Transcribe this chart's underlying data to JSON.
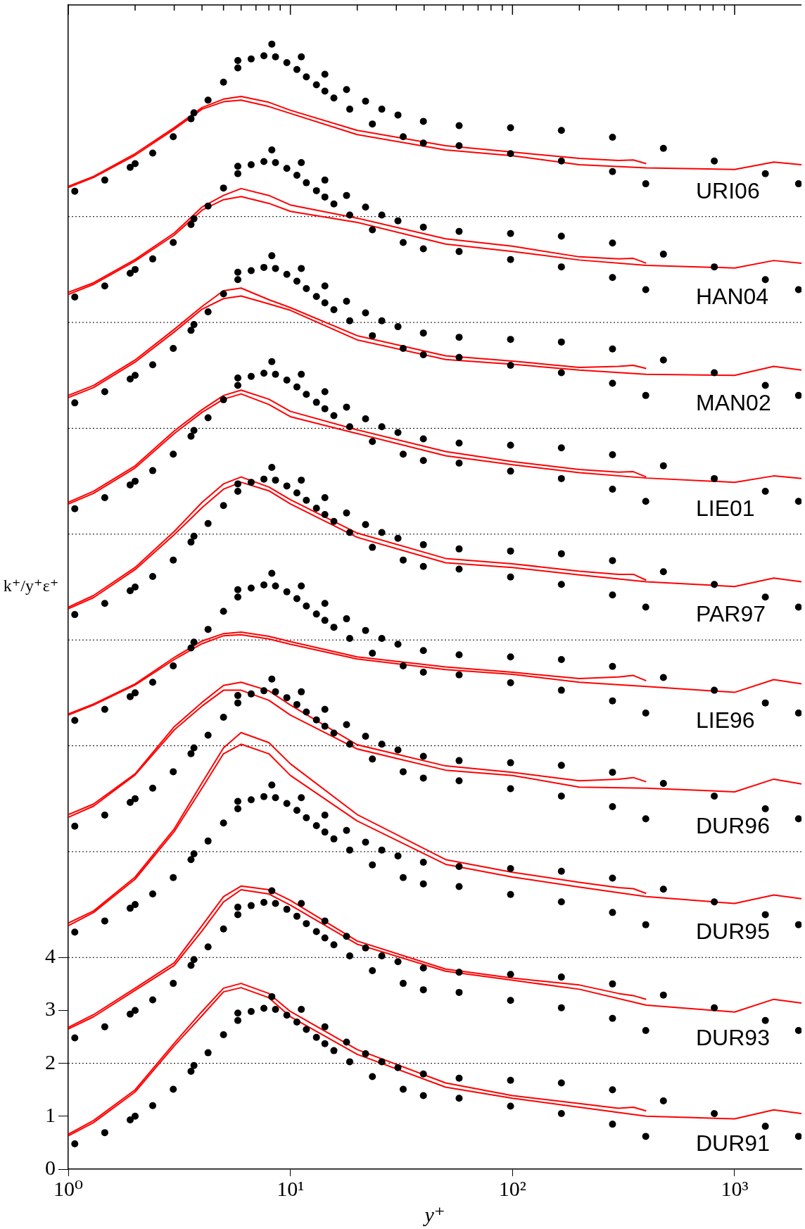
{
  "chart_data": {
    "type": "line",
    "xlabel": "y⁺",
    "ylabel": "k⁺/y⁺ε⁺",
    "log": "x",
    "grid": false,
    "legend": false,
    "xlim": [
      1,
      2000
    ],
    "ylim": [
      0,
      22
    ],
    "xticks": [
      {
        "value": 1,
        "label": "10⁰"
      },
      {
        "value": 2,
        "label": null
      },
      {
        "value": 3,
        "label": null
      },
      {
        "value": 4,
        "label": null
      },
      {
        "value": 5,
        "label": null
      },
      {
        "value": 6,
        "label": null
      },
      {
        "value": 7,
        "label": null
      },
      {
        "value": 8,
        "label": null
      },
      {
        "value": 9,
        "label": null
      },
      {
        "value": 10,
        "label": "10¹"
      },
      {
        "value": 20,
        "label": null
      },
      {
        "value": 30,
        "label": null
      },
      {
        "value": 40,
        "label": null
      },
      {
        "value": 50,
        "label": null
      },
      {
        "value": 60,
        "label": null
      },
      {
        "value": 70,
        "label": null
      },
      {
        "value": 80,
        "label": null
      },
      {
        "value": 90,
        "label": null
      },
      {
        "value": 100,
        "label": "10²"
      },
      {
        "value": 200,
        "label": null
      },
      {
        "value": 300,
        "label": null
      },
      {
        "value": 400,
        "label": null
      },
      {
        "value": 500,
        "label": null
      },
      {
        "value": 600,
        "label": null
      },
      {
        "value": 700,
        "label": null
      },
      {
        "value": 800,
        "label": null
      },
      {
        "value": 900,
        "label": null
      },
      {
        "value": 1000,
        "label": "10³"
      }
    ],
    "yticks": [
      0,
      1,
      2,
      3,
      4
    ],
    "ref_lines": [
      {
        "axis": "y",
        "value": 2,
        "color": "#000000",
        "line_style": "dotted"
      },
      {
        "axis": "y",
        "value": 4,
        "color": "#000000",
        "line_style": "dotted"
      },
      {
        "axis": "y",
        "value": 6,
        "color": "#000000",
        "line_style": "dotted"
      },
      {
        "axis": "y",
        "value": 8,
        "color": "#000000",
        "line_style": "dotted"
      },
      {
        "axis": "y",
        "value": 10,
        "color": "#000000",
        "line_style": "dotted"
      },
      {
        "axis": "y",
        "value": 12,
        "color": "#000000",
        "line_style": "dotted"
      },
      {
        "axis": "y",
        "value": 14,
        "color": "#000000",
        "line_style": "dotted"
      },
      {
        "axis": "y",
        "value": 16,
        "color": "#000000",
        "line_style": "dotted"
      },
      {
        "axis": "y",
        "value": 18,
        "color": "#000000",
        "line_style": "dotted"
      }
    ],
    "annotations": [
      "DUR91",
      "DUR93",
      "DUR95",
      "DUR96",
      "LIE96",
      "PAR97",
      "LIE01",
      "MAN02",
      "HAN04",
      "URI06"
    ],
    "series": [
      {
        "type": "scatter",
        "marker": "circle",
        "color": "#000000",
        "x": [
          1.07,
          1.46,
          1.9,
          2.0,
          2.4,
          2.97,
          3.57,
          3.68,
          4.26,
          5.0,
          5.8,
          5.8,
          6.66,
          7.6,
          8.25,
          8.57,
          9.64,
          10.7,
          11.2,
          11.8,
          13.1,
          14.3,
          14.3,
          15.7,
          17.9,
          18.5,
          21.8,
          23.4,
          25.8,
          30.5,
          32.2,
          39.7,
          39.7,
          57.5,
          57.5,
          98,
          98,
          166,
          166,
          282,
          282,
          398,
          478,
          810,
          1375,
          1940
        ],
        "values": [
          0.48,
          0.69,
          0.93,
          1,
          1.2,
          1.51,
          1.85,
          1.96,
          2.2,
          2.54,
          2.81,
          2.95,
          2.98,
          3.04,
          3.26,
          3.02,
          2.91,
          2.78,
          3.02,
          2.64,
          2.49,
          2.69,
          2.37,
          2.24,
          2.4,
          2.03,
          2.18,
          1.75,
          2.03,
          1.92,
          1.51,
          1.8,
          1.39,
          1.72,
          1.34,
          1.68,
          1.19,
          1.63,
          1.05,
          1.5,
          0.85,
          0.62,
          1.29,
          1.05,
          0.81,
          0.62
        ]
      },
      {
        "type": "scatter",
        "marker": "circle",
        "color": "#000000",
        "x": [
          1.07,
          1.46,
          1.9,
          2.0,
          2.4,
          2.97,
          3.57,
          3.68,
          4.26,
          5.0,
          5.8,
          5.8,
          6.66,
          7.6,
          8.25,
          8.57,
          9.64,
          10.7,
          11.2,
          11.8,
          13.1,
          14.3,
          14.3,
          15.7,
          17.9,
          18.5,
          21.8,
          23.4,
          25.8,
          30.5,
          32.2,
          39.7,
          39.7,
          57.5,
          57.5,
          98,
          98,
          166,
          166,
          282,
          282,
          398,
          478,
          810,
          1375,
          1940
        ],
        "values": [
          2.48,
          2.69,
          2.93,
          3,
          3.2,
          3.51,
          3.85,
          3.96,
          4.2,
          4.54,
          4.81,
          4.95,
          4.98,
          5.04,
          5.26,
          5.02,
          4.91,
          4.78,
          5.02,
          4.64,
          4.49,
          4.69,
          4.37,
          4.24,
          4.4,
          4.03,
          4.18,
          3.75,
          4.03,
          3.92,
          3.51,
          3.8,
          3.39,
          3.72,
          3.34,
          3.68,
          3.19,
          3.63,
          3.05,
          3.5,
          2.85,
          2.62,
          3.29,
          3.05,
          2.81,
          2.62
        ]
      },
      {
        "type": "scatter",
        "marker": "circle",
        "color": "#000000",
        "x": [
          1.07,
          1.46,
          1.9,
          2.0,
          2.4,
          2.97,
          3.57,
          3.68,
          4.26,
          5.0,
          5.8,
          5.8,
          6.66,
          7.6,
          8.25,
          8.57,
          9.64,
          10.7,
          11.2,
          11.8,
          13.1,
          14.3,
          14.3,
          15.7,
          17.9,
          18.5,
          21.8,
          23.4,
          25.8,
          30.5,
          32.2,
          39.7,
          39.7,
          57.5,
          57.5,
          98,
          98,
          166,
          166,
          282,
          282,
          398,
          478,
          810,
          1375,
          1940
        ],
        "values": [
          4.48,
          4.69,
          4.93,
          5,
          5.2,
          5.51,
          5.85,
          5.96,
          6.2,
          6.54,
          6.81,
          6.95,
          6.98,
          7.04,
          7.26,
          7.02,
          6.91,
          6.78,
          7.02,
          6.64,
          6.49,
          6.69,
          6.37,
          6.24,
          6.4,
          6.03,
          6.18,
          5.75,
          6.03,
          5.92,
          5.51,
          5.8,
          5.39,
          5.72,
          5.34,
          5.68,
          5.19,
          5.63,
          5.05,
          5.5,
          4.85,
          4.62,
          5.29,
          5.05,
          4.81,
          4.62
        ]
      },
      {
        "type": "scatter",
        "marker": "circle",
        "color": "#000000",
        "x": [
          1.07,
          1.46,
          1.9,
          2.0,
          2.4,
          2.97,
          3.57,
          3.68,
          4.26,
          5.0,
          5.8,
          5.8,
          6.66,
          7.6,
          8.25,
          8.57,
          9.64,
          10.7,
          11.2,
          11.8,
          13.1,
          14.3,
          14.3,
          15.7,
          17.9,
          18.5,
          21.8,
          23.4,
          25.8,
          30.5,
          32.2,
          39.7,
          39.7,
          57.5,
          57.5,
          98,
          98,
          166,
          166,
          282,
          282,
          398,
          478,
          810,
          1375,
          1940
        ],
        "values": [
          6.48,
          6.69,
          6.93,
          7,
          7.2,
          7.51,
          7.85,
          7.96,
          8.2,
          8.54,
          8.81,
          8.95,
          8.98,
          9.04,
          9.26,
          9.02,
          8.91,
          8.78,
          9.02,
          8.64,
          8.49,
          8.69,
          8.37,
          8.24,
          8.4,
          8.03,
          8.18,
          7.75,
          8.03,
          7.92,
          7.51,
          7.8,
          7.39,
          7.72,
          7.34,
          7.68,
          7.19,
          7.63,
          7.05,
          7.5,
          6.85,
          6.62,
          7.29,
          7.05,
          6.81,
          6.62
        ]
      },
      {
        "type": "scatter",
        "marker": "circle",
        "color": "#000000",
        "x": [
          1.07,
          1.46,
          1.9,
          2.0,
          2.4,
          2.97,
          3.57,
          3.68,
          4.26,
          5.0,
          5.8,
          5.8,
          6.66,
          7.6,
          8.25,
          8.57,
          9.64,
          10.7,
          11.2,
          11.8,
          13.1,
          14.3,
          14.3,
          15.7,
          17.9,
          18.5,
          21.8,
          23.4,
          25.8,
          30.5,
          32.2,
          39.7,
          39.7,
          57.5,
          57.5,
          98,
          98,
          166,
          166,
          282,
          282,
          398,
          478,
          810,
          1375,
          1940
        ],
        "values": [
          8.48,
          8.69,
          8.93,
          9,
          9.2,
          9.51,
          9.85,
          9.96,
          10.2,
          10.54,
          10.81,
          10.95,
          10.98,
          11.04,
          11.26,
          11.02,
          10.91,
          10.78,
          11.02,
          10.64,
          10.49,
          10.69,
          10.37,
          10.24,
          10.4,
          10.03,
          10.18,
          9.75,
          10.03,
          9.92,
          9.51,
          9.8,
          9.39,
          9.72,
          9.34,
          9.68,
          9.19,
          9.63,
          9.05,
          9.5,
          8.85,
          8.62,
          9.29,
          9.05,
          8.81,
          8.62
        ]
      },
      {
        "type": "scatter",
        "marker": "circle",
        "color": "#000000",
        "x": [
          1.07,
          1.46,
          1.9,
          2.0,
          2.4,
          2.97,
          3.57,
          3.68,
          4.26,
          5.0,
          5.8,
          5.8,
          6.66,
          7.6,
          8.25,
          8.57,
          9.64,
          10.7,
          11.2,
          11.8,
          13.1,
          14.3,
          14.3,
          15.7,
          17.9,
          18.5,
          21.8,
          23.4,
          25.8,
          30.5,
          32.2,
          39.7,
          39.7,
          57.5,
          57.5,
          98,
          98,
          166,
          166,
          282,
          282,
          398,
          478,
          810,
          1375,
          1940
        ],
        "values": [
          10.48,
          10.69,
          10.93,
          11,
          11.2,
          11.51,
          11.85,
          11.96,
          12.2,
          12.54,
          12.81,
          12.95,
          12.98,
          13.04,
          13.26,
          13.02,
          12.91,
          12.78,
          13.02,
          12.64,
          12.49,
          12.69,
          12.37,
          12.24,
          12.4,
          12.03,
          12.18,
          11.75,
          12.03,
          11.92,
          11.51,
          11.8,
          11.39,
          11.72,
          11.34,
          11.68,
          11.19,
          11.63,
          11.05,
          11.5,
          10.85,
          10.62,
          11.29,
          11.05,
          10.81,
          10.62
        ]
      },
      {
        "type": "scatter",
        "marker": "circle",
        "color": "#000000",
        "x": [
          1.07,
          1.46,
          1.9,
          2.0,
          2.4,
          2.97,
          3.57,
          3.68,
          4.26,
          5.0,
          5.8,
          5.8,
          6.66,
          7.6,
          8.25,
          8.57,
          9.64,
          10.7,
          11.2,
          11.8,
          13.1,
          14.3,
          14.3,
          15.7,
          17.9,
          18.5,
          21.8,
          23.4,
          25.8,
          30.5,
          32.2,
          39.7,
          39.7,
          57.5,
          57.5,
          98,
          98,
          166,
          166,
          282,
          282,
          398,
          478,
          810,
          1375,
          1940
        ],
        "values": [
          12.48,
          12.69,
          12.93,
          13,
          13.2,
          13.51,
          13.85,
          13.96,
          14.2,
          14.54,
          14.81,
          14.95,
          14.98,
          15.04,
          15.26,
          15.02,
          14.91,
          14.78,
          15.02,
          14.64,
          14.49,
          14.69,
          14.37,
          14.24,
          14.4,
          14.03,
          14.18,
          13.75,
          14.03,
          13.92,
          13.51,
          13.8,
          13.39,
          13.72,
          13.34,
          13.68,
          13.19,
          13.63,
          13.05,
          13.5,
          12.85,
          12.62,
          13.29,
          13.05,
          12.81,
          12.62
        ]
      },
      {
        "type": "scatter",
        "marker": "circle",
        "color": "#000000",
        "x": [
          1.07,
          1.46,
          1.9,
          2.0,
          2.4,
          2.97,
          3.57,
          3.68,
          4.26,
          5.0,
          5.8,
          5.8,
          6.66,
          7.6,
          8.25,
          8.57,
          9.64,
          10.7,
          11.2,
          11.8,
          13.1,
          14.3,
          14.3,
          15.7,
          17.9,
          18.5,
          21.8,
          23.4,
          25.8,
          30.5,
          32.2,
          39.7,
          39.7,
          57.5,
          57.5,
          98,
          98,
          166,
          166,
          282,
          282,
          398,
          478,
          810,
          1375,
          1940
        ],
        "values": [
          14.48,
          14.69,
          14.93,
          15,
          15.2,
          15.51,
          15.85,
          15.96,
          16.2,
          16.54,
          16.81,
          16.95,
          16.98,
          17.04,
          17.26,
          17.02,
          16.91,
          16.78,
          17.02,
          16.64,
          16.49,
          16.69,
          16.37,
          16.24,
          16.4,
          16.03,
          16.18,
          15.75,
          16.03,
          15.92,
          15.51,
          15.8,
          15.39,
          15.72,
          15.34,
          15.68,
          15.19,
          15.63,
          15.05,
          15.5,
          14.85,
          14.62,
          15.29,
          15.05,
          14.81,
          14.62
        ]
      },
      {
        "type": "scatter",
        "marker": "circle",
        "color": "#000000",
        "x": [
          1.07,
          1.46,
          1.9,
          2.0,
          2.4,
          2.97,
          3.57,
          3.68,
          4.26,
          5.0,
          5.8,
          5.8,
          6.66,
          7.6,
          8.25,
          8.57,
          9.64,
          10.7,
          11.2,
          11.8,
          13.1,
          14.3,
          14.3,
          15.7,
          17.9,
          18.5,
          21.8,
          23.4,
          25.8,
          30.5,
          32.2,
          39.7,
          39.7,
          57.5,
          57.5,
          98,
          98,
          166,
          166,
          282,
          282,
          398,
          478,
          810,
          1375,
          1940
        ],
        "values": [
          16.48,
          16.69,
          16.93,
          17,
          17.2,
          17.51,
          17.85,
          17.96,
          18.2,
          18.54,
          18.81,
          18.95,
          18.98,
          19.04,
          19.26,
          19.02,
          18.91,
          18.78,
          19.02,
          18.64,
          18.49,
          18.69,
          18.37,
          18.24,
          18.4,
          18.03,
          18.18,
          17.75,
          18.03,
          17.92,
          17.51,
          17.8,
          17.39,
          17.72,
          17.34,
          17.68,
          17.19,
          17.63,
          17.05,
          17.5,
          16.85,
          16.62,
          17.29,
          17.05,
          16.81,
          16.62
        ]
      },
      {
        "type": "scatter",
        "marker": "circle",
        "color": "#000000",
        "x": [
          1.07,
          1.46,
          1.9,
          2.0,
          2.4,
          2.97,
          3.57,
          3.68,
          4.26,
          5.0,
          5.8,
          5.8,
          6.66,
          7.6,
          8.25,
          8.57,
          9.64,
          10.7,
          11.2,
          11.8,
          13.1,
          14.3,
          14.3,
          15.7,
          17.9,
          18.5,
          21.8,
          23.4,
          25.8,
          30.5,
          32.2,
          39.7,
          39.7,
          57.5,
          57.5,
          98,
          98,
          166,
          166,
          282,
          282,
          398,
          478,
          810,
          1375,
          1940
        ],
        "values": [
          18.48,
          18.69,
          18.93,
          19,
          19.2,
          19.51,
          19.85,
          19.96,
          20.2,
          20.54,
          20.81,
          20.95,
          20.98,
          21.04,
          21.26,
          21.02,
          20.91,
          20.78,
          21.02,
          20.64,
          20.49,
          20.69,
          20.37,
          20.24,
          20.4,
          20.03,
          20.18,
          19.75,
          20.03,
          19.92,
          19.51,
          19.8,
          19.39,
          19.72,
          19.34,
          19.68,
          19.19,
          19.63,
          19.05,
          19.5,
          18.85,
          18.62,
          19.29,
          19.05,
          18.81,
          18.62
        ]
      },
      {
        "type": "line",
        "marker": "none",
        "color": "#ff0000",
        "x": [
          1,
          1.3,
          2,
          3,
          4,
          5,
          6,
          8,
          10,
          20,
          50,
          100,
          200,
          300,
          350,
          400
        ],
        "values": [
          0.66,
          0.92,
          1.5,
          2.38,
          2.98,
          3.42,
          3.51,
          3.32,
          2.98,
          2.26,
          1.63,
          1.39,
          1.24,
          1.15,
          1.17,
          1.1
        ]
      },
      {
        "type": "line",
        "marker": "none",
        "color": "#ff0000",
        "x": [
          1,
          1.3,
          2,
          3,
          4,
          5,
          6,
          8,
          10,
          20,
          50,
          100,
          200,
          400,
          1000,
          1500,
          2000
        ],
        "values": [
          0.63,
          0.88,
          1.46,
          2.33,
          2.9,
          3.35,
          3.43,
          3.24,
          2.88,
          2.17,
          1.55,
          1.34,
          1.17,
          1.0,
          0.95,
          1.12,
          1.05
        ]
      },
      {
        "type": "line",
        "marker": "none",
        "color": "#ff0000",
        "x": [
          1,
          1.3,
          2,
          3,
          4,
          5,
          6,
          8,
          10,
          20,
          50,
          100,
          200,
          300,
          350,
          400
        ],
        "values": [
          2.68,
          2.92,
          3.42,
          3.9,
          4.6,
          5.15,
          5.35,
          5.28,
          5.08,
          4.31,
          3.78,
          3.61,
          3.48,
          3.32,
          3.28,
          3.21
        ]
      },
      {
        "type": "line",
        "marker": "none",
        "color": "#ff0000",
        "x": [
          1,
          1.3,
          2,
          3,
          4,
          5,
          6,
          8,
          10,
          20,
          50,
          100,
          200,
          400,
          1000,
          1500,
          2000
        ],
        "values": [
          2.65,
          2.88,
          3.38,
          3.85,
          4.5,
          5.05,
          5.28,
          5.2,
          4.99,
          4.25,
          3.74,
          3.57,
          3.4,
          3.1,
          2.97,
          3.21,
          3.14
        ]
      },
      {
        "type": "line",
        "marker": "none",
        "color": "#ff0000",
        "x": [
          1,
          1.3,
          2,
          3,
          4,
          5,
          6,
          8,
          10,
          20,
          50,
          100,
          200,
          300,
          350,
          400
        ],
        "values": [
          4.65,
          4.88,
          5.52,
          6.43,
          7.3,
          7.96,
          8.25,
          8.06,
          7.66,
          6.7,
          5.85,
          5.61,
          5.42,
          5.32,
          5.3,
          5.21
        ]
      },
      {
        "type": "line",
        "marker": "none",
        "color": "#ff0000",
        "x": [
          1,
          1.3,
          2,
          3,
          4,
          5,
          6,
          8,
          10,
          20,
          50,
          100,
          200,
          400,
          1000,
          1500,
          2000
        ],
        "values": [
          4.6,
          4.85,
          5.48,
          6.38,
          7.2,
          7.85,
          8.03,
          7.85,
          7.44,
          6.58,
          5.76,
          5.52,
          5.33,
          5.15,
          5.02,
          5.18,
          5.11
        ]
      },
      {
        "type": "line",
        "marker": "none",
        "color": "#ff0000",
        "x": [
          1,
          1.3,
          2,
          3,
          4,
          5,
          6,
          8,
          10,
          20,
          50,
          100,
          200,
          300,
          350,
          400
        ],
        "values": [
          6.7,
          6.9,
          7.47,
          8.36,
          8.82,
          9.14,
          9.2,
          9.04,
          8.77,
          8.02,
          7.62,
          7.5,
          7.34,
          7.37,
          7.4,
          7.32
        ]
      },
      {
        "type": "line",
        "marker": "none",
        "color": "#ff0000",
        "x": [
          1,
          1.3,
          2,
          3,
          4,
          5,
          6,
          8,
          10,
          20,
          50,
          100,
          200,
          400,
          1000,
          1500,
          2000
        ],
        "values": [
          6.65,
          6.86,
          7.45,
          8.3,
          8.75,
          9.05,
          9.05,
          8.86,
          8.58,
          7.94,
          7.54,
          7.44,
          7.22,
          7.2,
          7.13,
          7.37,
          7.28
        ]
      },
      {
        "type": "line",
        "marker": "none",
        "color": "#ff0000",
        "x": [
          1,
          1.3,
          2,
          3,
          4,
          5,
          6,
          8,
          10,
          20,
          50,
          100,
          200,
          300,
          350,
          400
        ],
        "values": [
          8.6,
          8.79,
          9.17,
          9.67,
          9.98,
          10.12,
          10.15,
          10.07,
          9.97,
          9.68,
          9.49,
          9.39,
          9.27,
          9.3,
          9.33,
          9.23
        ]
      },
      {
        "type": "line",
        "marker": "none",
        "color": "#ff0000",
        "x": [
          1,
          1.3,
          2,
          3,
          4,
          5,
          6,
          8,
          10,
          20,
          50,
          100,
          200,
          400,
          1000,
          1500,
          2000
        ],
        "values": [
          8.58,
          8.77,
          9.15,
          9.63,
          9.93,
          10.08,
          10.1,
          10.02,
          9.92,
          9.64,
          9.44,
          9.35,
          9.2,
          9.12,
          9.01,
          9.25,
          9.17
        ]
      },
      {
        "type": "line",
        "marker": "none",
        "color": "#ff0000",
        "x": [
          1,
          1.3,
          2,
          3,
          4,
          5,
          6,
          8,
          10,
          20,
          50,
          100,
          200,
          300,
          350,
          400
        ],
        "values": [
          10.62,
          10.84,
          11.37,
          12.05,
          12.6,
          12.95,
          13.08,
          12.89,
          12.65,
          12.02,
          11.54,
          11.44,
          11.3,
          11.24,
          11.24,
          11.13
        ]
      },
      {
        "type": "line",
        "marker": "none",
        "color": "#ff0000",
        "x": [
          1,
          1.3,
          2,
          3,
          4,
          5,
          6,
          8,
          10,
          20,
          50,
          100,
          200,
          400,
          1000,
          1500,
          2000
        ],
        "values": [
          10.59,
          10.8,
          11.33,
          11.99,
          12.5,
          12.85,
          12.98,
          12.82,
          12.57,
          11.94,
          11.46,
          11.37,
          11.23,
          11.1,
          11.01,
          11.17,
          11.1
        ]
      },
      {
        "type": "line",
        "marker": "none",
        "color": "#ff0000",
        "x": [
          1,
          1.3,
          2,
          3,
          4,
          5,
          6,
          8,
          10,
          20,
          50,
          100,
          200,
          300,
          350,
          400
        ],
        "values": [
          12.6,
          12.81,
          13.29,
          13.95,
          14.35,
          14.62,
          14.72,
          14.55,
          14.32,
          13.97,
          13.56,
          13.37,
          13.22,
          13.17,
          13.18,
          13.08
        ]
      },
      {
        "type": "line",
        "marker": "none",
        "color": "#ff0000",
        "x": [
          1,
          1.3,
          2,
          3,
          4,
          5,
          6,
          8,
          10,
          20,
          50,
          100,
          200,
          400,
          1000,
          1500,
          2000
        ],
        "values": [
          12.57,
          12.77,
          13.25,
          13.9,
          14.3,
          14.55,
          14.65,
          14.45,
          14.22,
          13.9,
          13.48,
          13.31,
          13.16,
          13.06,
          12.98,
          13.1,
          13.05
        ]
      },
      {
        "type": "line",
        "marker": "none",
        "color": "#ff0000",
        "x": [
          1,
          1.3,
          2,
          3,
          4,
          5,
          6,
          8,
          10,
          20,
          50,
          100,
          200,
          300,
          350,
          400
        ],
        "values": [
          14.62,
          14.81,
          15.29,
          15.87,
          16.3,
          16.6,
          16.65,
          16.43,
          16.28,
          15.75,
          15.37,
          15.27,
          15.15,
          15.17,
          15.19,
          15.13
        ]
      },
      {
        "type": "line",
        "marker": "none",
        "color": "#ff0000",
        "x": [
          1,
          1.3,
          2,
          3,
          4,
          5,
          6,
          8,
          10,
          20,
          50,
          100,
          200,
          400,
          1000,
          1500,
          2000
        ],
        "values": [
          14.58,
          14.77,
          15.25,
          15.82,
          16.25,
          16.45,
          16.5,
          16.35,
          16.23,
          15.67,
          15.3,
          15.21,
          15.1,
          15.02,
          15,
          15.17,
          15.1
        ]
      },
      {
        "type": "line",
        "marker": "none",
        "color": "#ff0000",
        "x": [
          1,
          1.3,
          2,
          3,
          4,
          5,
          6,
          8,
          10,
          20,
          50,
          100,
          200,
          300,
          350,
          400
        ],
        "values": [
          16.57,
          16.75,
          17.19,
          17.69,
          18.18,
          18.4,
          18.53,
          18.4,
          18.22,
          17.97,
          17.58,
          17.44,
          17.24,
          17.2,
          17.21,
          17.12
        ]
      },
      {
        "type": "line",
        "marker": "none",
        "color": "#ff0000",
        "x": [
          1,
          1.3,
          2,
          3,
          4,
          5,
          6,
          8,
          10,
          20,
          50,
          100,
          200,
          400,
          1000,
          1500,
          2000
        ],
        "values": [
          16.53,
          16.72,
          17.16,
          17.65,
          18.12,
          18.32,
          18.38,
          18.25,
          18.1,
          17.89,
          17.48,
          17.34,
          17.18,
          17.08,
          17.03,
          17.17,
          17.12
        ]
      },
      {
        "type": "line",
        "marker": "none",
        "color": "#ff0000",
        "x": [
          1,
          1.3,
          2,
          3,
          4,
          5,
          6,
          8,
          10,
          20,
          50,
          100,
          200,
          300,
          350,
          400
        ],
        "values": [
          18.57,
          18.76,
          19.19,
          19.68,
          20.06,
          20.22,
          20.27,
          20.16,
          20.01,
          19.63,
          19.34,
          19.22,
          19.1,
          19.06,
          19.07,
          19
        ]
      },
      {
        "type": "line",
        "marker": "none",
        "color": "#ff0000",
        "x": [
          1,
          1.3,
          2,
          3,
          4,
          5,
          6,
          8,
          10,
          20,
          50,
          100,
          200,
          400,
          1000,
          1500,
          2000
        ],
        "values": [
          18.55,
          18.74,
          19.16,
          19.65,
          20.03,
          20.17,
          20.2,
          20.08,
          19.95,
          19.55,
          19.26,
          19.15,
          18.98,
          18.92,
          18.89,
          19.03,
          18.98
        ]
      }
    ]
  }
}
